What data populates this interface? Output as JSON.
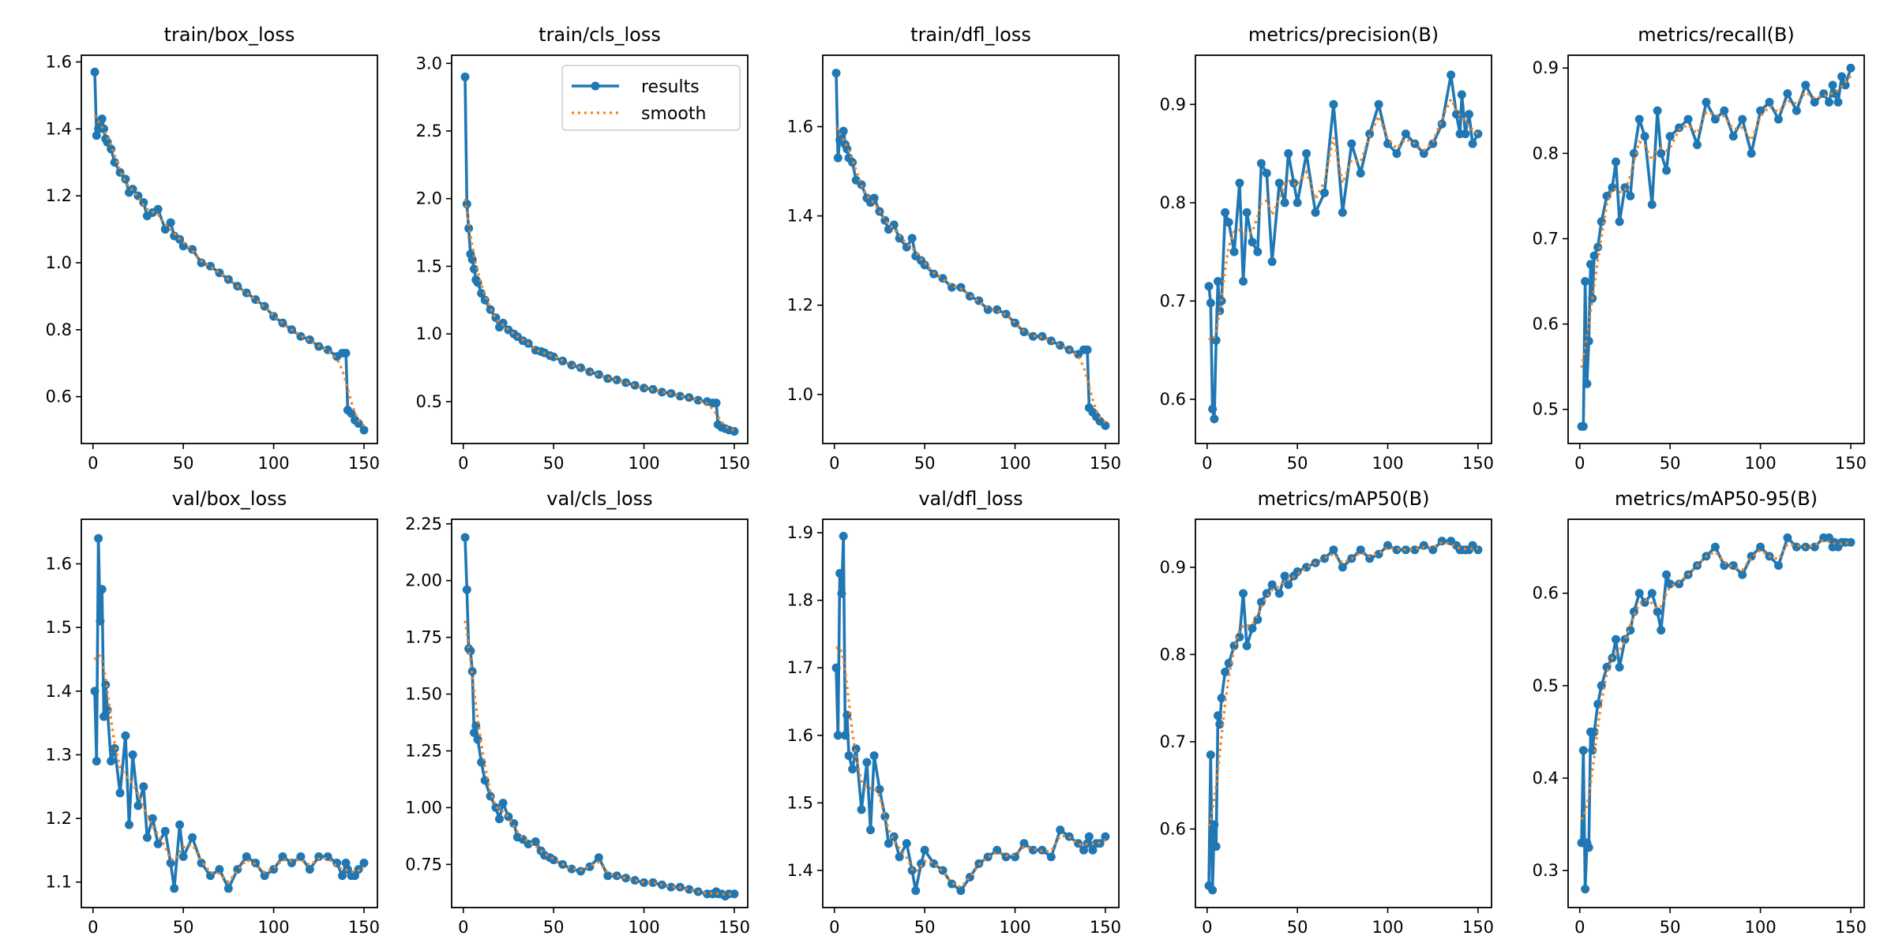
{
  "colors": {
    "results": "#1f77b4",
    "smooth": "#ff7f0e",
    "axes": "#000000",
    "legend_border": "#cccccc"
  },
  "legend": {
    "results_label": "results",
    "smooth_label": "smooth",
    "placement": "top-right",
    "shown_in": "train/cls_loss"
  },
  "chart_data": [
    {
      "type": "line",
      "title": "train/box_loss",
      "xlim": [
        -6.45,
        157.45
      ],
      "ylim": [
        0.46,
        1.62
      ],
      "xticks": [
        0,
        50,
        100,
        150
      ],
      "yticks": [
        0.6,
        0.8,
        1.0,
        1.2,
        1.4,
        1.6
      ],
      "ytick_labels": [
        "0.6",
        "0.8",
        "1.0",
        "1.2",
        "1.4",
        "1.6"
      ],
      "values": [
        1.57,
        1.38,
        1.4,
        1.42,
        1.43,
        1.4,
        1.37,
        1.36,
        1.34,
        1.3,
        1.27,
        1.25,
        1.21,
        1.22,
        1.2,
        1.18,
        1.14,
        1.15,
        1.16,
        1.1,
        1.12,
        1.08,
        1.07,
        1.05,
        1.04,
        1.0,
        0.99,
        0.97,
        0.95,
        0.93,
        0.91,
        0.89,
        0.87,
        0.84,
        0.82,
        0.8,
        0.78,
        0.77,
        0.75,
        0.74,
        0.72,
        0.73,
        0.73,
        0.56,
        0.55,
        0.53,
        0.52,
        0.5
      ]
    },
    {
      "type": "line",
      "title": "train/cls_loss",
      "xlim": [
        -6.45,
        157.45
      ],
      "ylim": [
        0.19,
        3.06
      ],
      "xticks": [
        0,
        50,
        100,
        150
      ],
      "yticks": [
        0.5,
        1.0,
        1.5,
        2.0,
        2.5,
        3.0
      ],
      "ytick_labels": [
        "0.5",
        "1.0",
        "1.5",
        "2.0",
        "2.5",
        "3.0"
      ],
      "values": [
        2.9,
        1.96,
        1.78,
        1.59,
        1.55,
        1.48,
        1.4,
        1.38,
        1.3,
        1.25,
        1.18,
        1.12,
        1.05,
        1.08,
        1.03,
        1.0,
        0.98,
        0.95,
        0.93,
        0.88,
        0.87,
        0.86,
        0.84,
        0.83,
        0.8,
        0.77,
        0.75,
        0.72,
        0.7,
        0.67,
        0.66,
        0.64,
        0.62,
        0.6,
        0.59,
        0.57,
        0.56,
        0.54,
        0.53,
        0.51,
        0.5,
        0.49,
        0.49,
        0.33,
        0.31,
        0.3,
        0.29,
        0.28
      ]
    },
    {
      "type": "line",
      "title": "train/dfl_loss",
      "xlim": [
        -6.45,
        157.45
      ],
      "ylim": [
        0.89,
        1.76
      ],
      "xticks": [
        0,
        50,
        100,
        150
      ],
      "yticks": [
        1.0,
        1.2,
        1.4,
        1.6
      ],
      "ytick_labels": [
        "1.0",
        "1.2",
        "1.4",
        "1.6"
      ],
      "values": [
        1.72,
        1.53,
        1.57,
        1.58,
        1.59,
        1.56,
        1.55,
        1.53,
        1.52,
        1.48,
        1.47,
        1.44,
        1.43,
        1.44,
        1.41,
        1.39,
        1.37,
        1.38,
        1.35,
        1.33,
        1.35,
        1.31,
        1.3,
        1.29,
        1.27,
        1.26,
        1.24,
        1.24,
        1.22,
        1.21,
        1.19,
        1.19,
        1.18,
        1.16,
        1.14,
        1.13,
        1.13,
        1.12,
        1.11,
        1.1,
        1.09,
        1.1,
        1.1,
        0.97,
        0.96,
        0.95,
        0.94,
        0.93
      ]
    },
    {
      "type": "line",
      "title": "metrics/precision(B)",
      "xlim": [
        -6.45,
        157.45
      ],
      "ylim": [
        0.555,
        0.95
      ],
      "xticks": [
        0,
        50,
        100,
        150
      ],
      "yticks": [
        0.6,
        0.7,
        0.8,
        0.9
      ],
      "ytick_labels": [
        "0.6",
        "0.7",
        "0.8",
        "0.9"
      ],
      "values": [
        0.715,
        0.698,
        0.59,
        0.58,
        0.66,
        0.72,
        0.69,
        0.7,
        0.79,
        0.78,
        0.75,
        0.82,
        0.72,
        0.79,
        0.76,
        0.75,
        0.84,
        0.83,
        0.74,
        0.82,
        0.8,
        0.85,
        0.82,
        0.8,
        0.85,
        0.79,
        0.81,
        0.9,
        0.79,
        0.86,
        0.83,
        0.87,
        0.9,
        0.86,
        0.85,
        0.87,
        0.86,
        0.85,
        0.86,
        0.88,
        0.93,
        0.89,
        0.87,
        0.91,
        0.87,
        0.89,
        0.86,
        0.87
      ]
    },
    {
      "type": "line",
      "title": "metrics/recall(B)",
      "xlim": [
        -6.45,
        157.45
      ],
      "ylim": [
        0.46,
        0.915
      ],
      "xticks": [
        0,
        50,
        100,
        150
      ],
      "yticks": [
        0.5,
        0.6,
        0.7,
        0.8,
        0.9
      ],
      "ytick_labels": [
        "0.5",
        "0.6",
        "0.7",
        "0.8",
        "0.9"
      ],
      "values": [
        0.48,
        0.48,
        0.65,
        0.53,
        0.58,
        0.67,
        0.63,
        0.68,
        0.69,
        0.72,
        0.75,
        0.76,
        0.79,
        0.72,
        0.76,
        0.75,
        0.8,
        0.84,
        0.82,
        0.74,
        0.85,
        0.8,
        0.78,
        0.82,
        0.83,
        0.84,
        0.81,
        0.86,
        0.84,
        0.85,
        0.82,
        0.84,
        0.8,
        0.85,
        0.86,
        0.84,
        0.87,
        0.85,
        0.88,
        0.86,
        0.87,
        0.86,
        0.88,
        0.87,
        0.86,
        0.89,
        0.88,
        0.9
      ]
    },
    {
      "type": "line",
      "title": "val/box_loss",
      "xlim": [
        -6.45,
        157.45
      ],
      "ylim": [
        1.06,
        1.67
      ],
      "xticks": [
        0,
        50,
        100,
        150
      ],
      "yticks": [
        1.1,
        1.2,
        1.3,
        1.4,
        1.5,
        1.6
      ],
      "ytick_labels": [
        "1.1",
        "1.2",
        "1.3",
        "1.4",
        "1.5",
        "1.6"
      ],
      "values": [
        1.4,
        1.29,
        1.64,
        1.51,
        1.56,
        1.36,
        1.41,
        1.37,
        1.29,
        1.31,
        1.24,
        1.33,
        1.19,
        1.3,
        1.22,
        1.25,
        1.17,
        1.2,
        1.16,
        1.18,
        1.13,
        1.09,
        1.19,
        1.14,
        1.17,
        1.13,
        1.11,
        1.12,
        1.09,
        1.12,
        1.14,
        1.13,
        1.11,
        1.12,
        1.14,
        1.13,
        1.14,
        1.12,
        1.14,
        1.14,
        1.13,
        1.11,
        1.13,
        1.12,
        1.11,
        1.11,
        1.12,
        1.13
      ]
    },
    {
      "type": "line",
      "title": "val/cls_loss",
      "xlim": [
        -6.45,
        157.45
      ],
      "ylim": [
        0.56,
        2.27
      ],
      "xticks": [
        0,
        50,
        100,
        150
      ],
      "yticks": [
        0.75,
        1.0,
        1.25,
        1.5,
        1.75,
        2.0,
        2.25
      ],
      "ytick_labels": [
        "0.75",
        "1.00",
        "1.25",
        "1.50",
        "1.75",
        "2.00",
        "2.25"
      ],
      "values": [
        2.19,
        1.96,
        1.7,
        1.69,
        1.6,
        1.33,
        1.36,
        1.3,
        1.2,
        1.12,
        1.05,
        1.0,
        0.95,
        1.02,
        0.96,
        0.93,
        0.87,
        0.86,
        0.84,
        0.85,
        0.81,
        0.79,
        0.78,
        0.77,
        0.75,
        0.73,
        0.72,
        0.74,
        0.78,
        0.7,
        0.7,
        0.69,
        0.68,
        0.67,
        0.67,
        0.66,
        0.65,
        0.65,
        0.64,
        0.63,
        0.62,
        0.62,
        0.63,
        0.62,
        0.62,
        0.61,
        0.62,
        0.62
      ]
    },
    {
      "type": "line",
      "title": "val/dfl_loss",
      "xlim": [
        -6.45,
        157.45
      ],
      "ylim": [
        1.345,
        1.92
      ],
      "xticks": [
        0,
        50,
        100,
        150
      ],
      "yticks": [
        1.4,
        1.5,
        1.6,
        1.7,
        1.8,
        1.9
      ],
      "ytick_labels": [
        "1.4",
        "1.5",
        "1.6",
        "1.7",
        "1.8",
        "1.9"
      ],
      "values": [
        1.7,
        1.6,
        1.84,
        1.81,
        1.895,
        1.6,
        1.63,
        1.57,
        1.55,
        1.58,
        1.49,
        1.56,
        1.46,
        1.57,
        1.52,
        1.48,
        1.44,
        1.45,
        1.42,
        1.44,
        1.4,
        1.37,
        1.41,
        1.43,
        1.41,
        1.4,
        1.38,
        1.37,
        1.39,
        1.41,
        1.42,
        1.43,
        1.42,
        1.42,
        1.44,
        1.43,
        1.43,
        1.42,
        1.46,
        1.45,
        1.44,
        1.43,
        1.44,
        1.45,
        1.43,
        1.44,
        1.44,
        1.45
      ]
    },
    {
      "type": "line",
      "title": "metrics/mAP50(B)",
      "xlim": [
        -6.45,
        157.45
      ],
      "ylim": [
        0.51,
        0.955
      ],
      "xticks": [
        0,
        50,
        100,
        150
      ],
      "yticks": [
        0.6,
        0.7,
        0.8,
        0.9
      ],
      "ytick_labels": [
        "0.6",
        "0.7",
        "0.8",
        "0.9"
      ],
      "values": [
        0.535,
        0.685,
        0.53,
        0.605,
        0.58,
        0.73,
        0.72,
        0.75,
        0.78,
        0.79,
        0.81,
        0.82,
        0.87,
        0.81,
        0.83,
        0.84,
        0.86,
        0.87,
        0.88,
        0.87,
        0.89,
        0.88,
        0.89,
        0.895,
        0.9,
        0.905,
        0.91,
        0.92,
        0.9,
        0.91,
        0.92,
        0.91,
        0.915,
        0.925,
        0.92,
        0.92,
        0.92,
        0.925,
        0.92,
        0.93,
        0.93,
        0.925,
        0.92,
        0.92,
        0.92,
        0.92,
        0.925,
        0.92
      ]
    },
    {
      "type": "line",
      "title": "metrics/mAP50-95(B)",
      "xlim": [
        -6.45,
        157.45
      ],
      "ylim": [
        0.26,
        0.68
      ],
      "xticks": [
        0,
        50,
        100,
        150
      ],
      "yticks": [
        0.3,
        0.4,
        0.5,
        0.6
      ],
      "ytick_labels": [
        "0.3",
        "0.4",
        "0.5",
        "0.6"
      ],
      "values": [
        0.33,
        0.43,
        0.28,
        0.33,
        0.325,
        0.45,
        0.43,
        0.45,
        0.48,
        0.5,
        0.52,
        0.53,
        0.55,
        0.52,
        0.55,
        0.56,
        0.58,
        0.6,
        0.59,
        0.6,
        0.58,
        0.56,
        0.62,
        0.61,
        0.61,
        0.62,
        0.63,
        0.64,
        0.65,
        0.63,
        0.63,
        0.62,
        0.64,
        0.65,
        0.64,
        0.63,
        0.66,
        0.65,
        0.65,
        0.65,
        0.66,
        0.66,
        0.65,
        0.655,
        0.65,
        0.655,
        0.655,
        0.655
      ]
    }
  ],
  "epochs": [
    1,
    2,
    3,
    4,
    5,
    6,
    7,
    8,
    10,
    12,
    15,
    18,
    20,
    22,
    25,
    28,
    30,
    33,
    36,
    40,
    43,
    45,
    48,
    50,
    55,
    60,
    65,
    70,
    75,
    80,
    85,
    90,
    95,
    100,
    105,
    110,
    115,
    120,
    125,
    130,
    135,
    138,
    140,
    141,
    143,
    145,
    147,
    150
  ],
  "smooth_sigma_epochs": 3
}
